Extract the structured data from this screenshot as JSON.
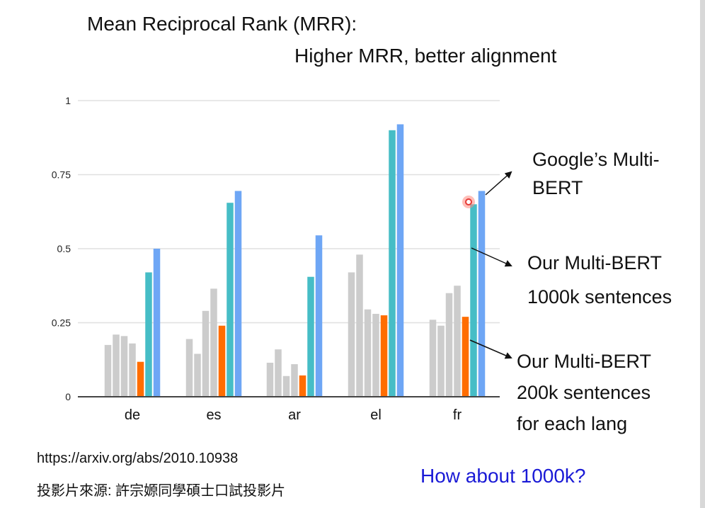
{
  "slide": {
    "title": "Mean Reciprocal Rank (MRR):",
    "subtitle": "Higher MRR, better alignment",
    "source_url": "https://arxiv.org/abs/2010.10938",
    "source_credit": "投影片來源: 許宗嫄同學碩士口試投影片",
    "question": "How about 1000k?"
  },
  "annotations": {
    "google": [
      "Google’s Multi-",
      "BERT"
    ],
    "ours_1000k": [
      "Our Multi-BERT",
      "1000k sentences"
    ],
    "ours_200k": [
      "Our Multi-BERT",
      "200k sentences",
      "for each lang"
    ]
  },
  "colors": {
    "baseline": "#cccccc",
    "ours_200k": "#ff6d01",
    "ours_1000k": "#46bdc6",
    "google": "#6ea6f5",
    "question": "#1a1ad6",
    "grid": "#e0e0e0",
    "axis": "#444444",
    "cursor": "#e53935"
  },
  "chart_data": {
    "type": "bar",
    "categories": [
      "de",
      "es",
      "ar",
      "el",
      "fr"
    ],
    "ylim": [
      0,
      1
    ],
    "yticks": [
      0,
      0.25,
      0.5,
      0.75,
      1
    ],
    "ytick_labels": [
      "0",
      "0.25",
      "0.5",
      "0.75",
      "1"
    ],
    "grid": true,
    "series": [
      {
        "color_key": "baseline",
        "values": [
          0.175,
          0.195,
          0.115,
          0.42,
          0.26
        ]
      },
      {
        "color_key": "baseline",
        "values": [
          0.21,
          0.145,
          0.16,
          0.48,
          0.24
        ]
      },
      {
        "color_key": "baseline",
        "values": [
          0.205,
          0.29,
          0.07,
          0.295,
          0.35
        ]
      },
      {
        "color_key": "baseline",
        "values": [
          0.18,
          0.365,
          0.11,
          0.28,
          0.375
        ]
      },
      {
        "name": "Our Multi-BERT 200k sentences for each lang",
        "color_key": "ours_200k",
        "values": [
          0.118,
          0.24,
          0.072,
          0.275,
          0.27
        ]
      },
      {
        "name": "Our Multi-BERT 1000k sentences",
        "color_key": "ours_1000k",
        "values": [
          0.42,
          0.655,
          0.405,
          0.9,
          0.65
        ]
      },
      {
        "name": "Google’s Multi-BERT",
        "color_key": "google",
        "values": [
          0.5,
          0.695,
          0.545,
          0.92,
          0.695
        ]
      }
    ]
  }
}
